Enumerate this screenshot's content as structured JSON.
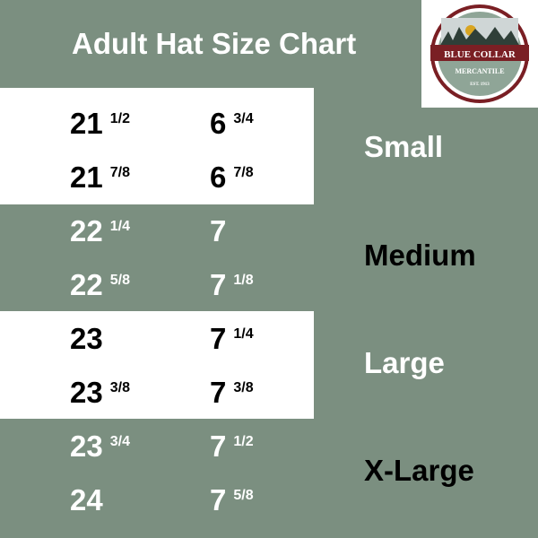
{
  "title": "Adult Hat Size Chart",
  "logo": {
    "line1": "BLUE COLLAR",
    "line2": "MERCANTILE",
    "line3": "EST. 1913"
  },
  "colors": {
    "background": "#7b8f80",
    "band": "#ffffff",
    "logo_red": "#7a1f24"
  },
  "rows": [
    {
      "cm": "21",
      "cm_frac": "1/2",
      "us": "6",
      "us_frac": "3/4"
    },
    {
      "cm": "21",
      "cm_frac": "7/8",
      "us": "6",
      "us_frac": "7/8"
    },
    {
      "cm": "22",
      "cm_frac": "1/4",
      "us": "7",
      "us_frac": ""
    },
    {
      "cm": "22",
      "cm_frac": "5/8",
      "us": "7",
      "us_frac": "1/8"
    },
    {
      "cm": "23",
      "cm_frac": "",
      "us": "7",
      "us_frac": "1/4"
    },
    {
      "cm": "23",
      "cm_frac": "3/8",
      "us": "7",
      "us_frac": "3/8"
    },
    {
      "cm": "23",
      "cm_frac": "3/4",
      "us": "7",
      "us_frac": "1/2"
    },
    {
      "cm": "24",
      "cm_frac": "",
      "us": "7",
      "us_frac": "5/8"
    }
  ],
  "sizes": [
    "Small",
    "Medium",
    "Large",
    "X-Large"
  ]
}
